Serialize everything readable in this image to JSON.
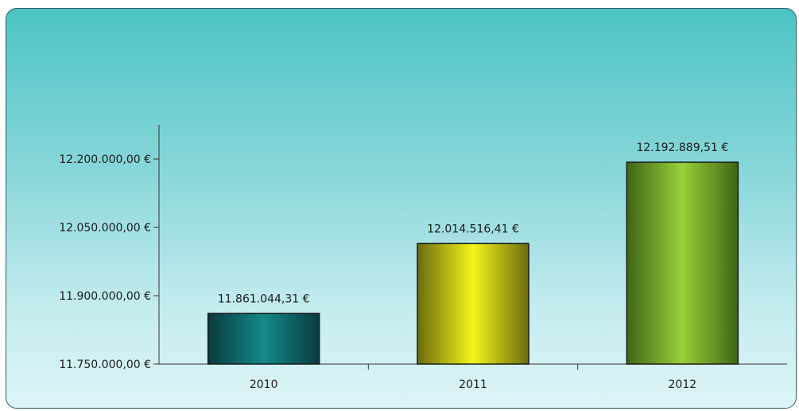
{
  "chart_data": {
    "type": "bar",
    "categories": [
      "2010",
      "2011",
      "2012"
    ],
    "values": [
      11861044.31,
      12014516.41,
      12192889.51
    ],
    "value_labels": [
      "11.861.044,31 €",
      "12.014.516,41 €",
      "12.192.889,51 €"
    ],
    "ylim": [
      11750000,
      12200000
    ],
    "yticks": [
      11750000,
      11900000,
      12050000,
      12200000
    ],
    "ytick_labels": [
      "11.750.000,00 €",
      "11.900.000,00 €",
      "12.050.000,00 €",
      "12.200.000,00 €"
    ],
    "bar_colors": [
      "#0e6e70",
      "#e8e81a",
      "#8ec42c"
    ],
    "grid": false,
    "legend": false
  }
}
